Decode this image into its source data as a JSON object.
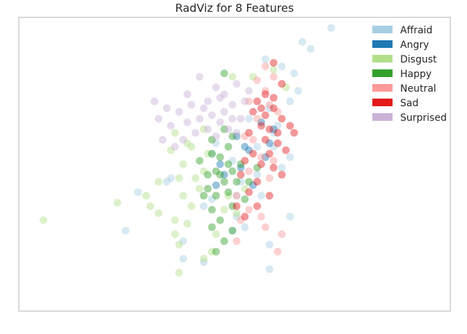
{
  "chart_data": {
    "type": "scatter",
    "title": "RadViz for 8 Features",
    "xlabel": "",
    "ylabel": "",
    "xlim": [
      -0.5,
      0.55
    ],
    "ylim": [
      -0.42,
      0.42
    ],
    "grid": false,
    "legend_position": "top-right",
    "axes_ticks_visible": false,
    "series": [
      {
        "name": "Affraid",
        "color": "#a6cee3",
        "points": [
          [
            0.26,
            0.39
          ],
          [
            0.19,
            0.35
          ],
          [
            0.21,
            0.33
          ],
          [
            0.1,
            0.3
          ],
          [
            0.14,
            0.28
          ],
          [
            0.17,
            0.26
          ],
          [
            0.18,
            0.21
          ],
          [
            0.16,
            0.18
          ],
          [
            0.11,
            0.16
          ],
          [
            0.12,
            0.09
          ],
          [
            0.08,
            0.05
          ],
          [
            0.12,
            0.05
          ],
          [
            0.16,
            0.02
          ],
          [
            0.08,
            -0.03
          ],
          [
            -0.03,
            0.03
          ],
          [
            -0.13,
            -0.04
          ],
          [
            -0.14,
            -0.05
          ],
          [
            -0.21,
            -0.08
          ],
          [
            -0.03,
            -0.1
          ],
          [
            -0.05,
            -0.12
          ],
          [
            0.16,
            -0.15
          ],
          [
            0.03,
            -0.15
          ],
          [
            -0.24,
            -0.19
          ],
          [
            -0.1,
            -0.22
          ],
          [
            0.02,
            -0.19
          ],
          [
            -0.1,
            -0.27
          ],
          [
            0.05,
            -0.18
          ],
          [
            0.11,
            -0.23
          ],
          [
            -0.05,
            -0.28
          ],
          [
            0.11,
            -0.3
          ],
          [
            0.04,
            -0.05
          ],
          [
            0.09,
            -0.09
          ],
          [
            0.02,
            0.01
          ],
          [
            -0.02,
            0.06
          ],
          [
            0.13,
            0.11
          ],
          [
            0.06,
            0.13
          ],
          [
            0.03,
            -0.09
          ],
          [
            0.14,
            -0.01
          ]
        ]
      },
      {
        "name": "Angry",
        "color": "#1f78b4",
        "points": [
          [
            0.06,
            0.04
          ],
          [
            0.1,
            0.02
          ],
          [
            0.04,
            -0.01
          ],
          [
            0.0,
            -0.03
          ],
          [
            -0.02,
            -0.06
          ],
          [
            0.07,
            -0.06
          ],
          [
            0.12,
            0.1
          ],
          [
            0.09,
            0.12
          ],
          [
            0.03,
            0.08
          ],
          [
            -0.01,
            0.0
          ],
          [
            0.05,
            0.05
          ],
          [
            0.11,
            0.06
          ]
        ]
      },
      {
        "name": "Disgust",
        "color": "#b2df8a",
        "points": [
          [
            -0.44,
            -0.16
          ],
          [
            -0.26,
            -0.11
          ],
          [
            -0.19,
            -0.09
          ],
          [
            -0.18,
            -0.12
          ],
          [
            -0.16,
            -0.14
          ],
          [
            -0.12,
            -0.16
          ],
          [
            -0.12,
            -0.2
          ],
          [
            -0.11,
            -0.23
          ],
          [
            -0.08,
            -0.12
          ],
          [
            -0.09,
            -0.17
          ],
          [
            -0.1,
            -0.09
          ],
          [
            -0.06,
            -0.07
          ],
          [
            -0.07,
            -0.04
          ],
          [
            -0.05,
            -0.02
          ],
          [
            -0.04,
            0.03
          ],
          [
            -0.09,
            0.06
          ],
          [
            -0.1,
            0.0
          ],
          [
            -0.11,
            -0.04
          ],
          [
            -0.12,
            0.09
          ],
          [
            -0.05,
            0.1
          ],
          [
            -0.02,
            -0.2
          ],
          [
            -0.03,
            -0.25
          ],
          [
            -0.05,
            -0.27
          ],
          [
            0.0,
            -0.13
          ],
          [
            0.01,
            -0.09
          ],
          [
            0.03,
            -0.14
          ],
          [
            0.05,
            -0.07
          ],
          [
            0.02,
            0.25
          ],
          [
            0.12,
            0.27
          ],
          [
            0.15,
            0.22
          ],
          [
            -0.11,
            -0.31
          ],
          [
            -0.16,
            -0.05
          ],
          [
            -0.13,
            0.04
          ],
          [
            -0.08,
            0.05
          ],
          [
            0.07,
            0.25
          ]
        ]
      },
      {
        "name": "Happy",
        "color": "#33a02c",
        "points": [
          [
            -0.03,
            0.03
          ],
          [
            -0.01,
            0.02
          ],
          [
            0.01,
            0.0
          ],
          [
            -0.02,
            -0.02
          ],
          [
            0.0,
            -0.05
          ],
          [
            -0.04,
            -0.07
          ],
          [
            -0.02,
            -0.09
          ],
          [
            0.01,
            -0.08
          ],
          [
            0.03,
            -0.05
          ],
          [
            -0.03,
            -0.13
          ],
          [
            -0.01,
            -0.16
          ],
          [
            0.02,
            -0.12
          ],
          [
            -0.04,
            -0.03
          ],
          [
            -0.05,
            -0.09
          ],
          [
            0.01,
            0.05
          ],
          [
            -0.03,
            0.07
          ],
          [
            0.0,
            0.1
          ],
          [
            0.04,
            0.0
          ],
          [
            0.02,
            -0.02
          ],
          [
            -0.06,
            0.01
          ],
          [
            0.0,
            -0.22
          ],
          [
            -0.03,
            -0.18
          ],
          [
            0.02,
            -0.19
          ],
          [
            -0.01,
            -0.03
          ],
          [
            0.05,
            -0.1
          ],
          [
            0.06,
            -0.05
          ],
          [
            0.08,
            -0.01
          ],
          [
            0.02,
            0.08
          ],
          [
            0.0,
            0.26
          ],
          [
            -0.02,
            -0.25
          ]
        ]
      },
      {
        "name": "Neutral",
        "color": "#fb9a99",
        "points": [
          [
            0.1,
            0.28
          ],
          [
            0.12,
            0.25
          ],
          [
            0.08,
            0.24
          ],
          [
            0.1,
            0.21
          ],
          [
            0.06,
            0.18
          ],
          [
            0.11,
            0.17
          ],
          [
            0.13,
            0.15
          ],
          [
            0.08,
            0.13
          ],
          [
            0.05,
            0.08
          ],
          [
            0.09,
            0.02
          ],
          [
            0.06,
            -0.02
          ],
          [
            0.11,
            -0.04
          ],
          [
            0.03,
            -0.09
          ],
          [
            0.06,
            -0.13
          ],
          [
            0.09,
            -0.15
          ],
          [
            0.04,
            -0.16
          ],
          [
            0.1,
            -0.18
          ],
          [
            0.14,
            -0.2
          ],
          [
            0.13,
            -0.25
          ],
          [
            0.03,
            -0.22
          ],
          [
            0.07,
            0.07
          ],
          [
            0.12,
            0.01
          ]
        ]
      },
      {
        "name": "Sad",
        "color": "#e31a1c",
        "points": [
          [
            0.12,
            0.29
          ],
          [
            0.14,
            0.23
          ],
          [
            0.1,
            0.2
          ],
          [
            0.08,
            0.18
          ],
          [
            0.12,
            0.16
          ],
          [
            0.07,
            0.15
          ],
          [
            0.14,
            0.13
          ],
          [
            0.09,
            0.11
          ],
          [
            0.11,
            0.1
          ],
          [
            0.06,
            0.09
          ],
          [
            0.1,
            0.07
          ],
          [
            0.13,
            0.06
          ],
          [
            0.17,
            0.09
          ],
          [
            0.15,
            0.04
          ],
          [
            0.11,
            0.03
          ],
          [
            0.07,
            0.03
          ],
          [
            0.09,
            0.0
          ],
          [
            0.12,
            -0.01
          ],
          [
            0.14,
            -0.03
          ],
          [
            0.05,
            0.01
          ],
          [
            0.04,
            -0.03
          ],
          [
            0.08,
            -0.05
          ],
          [
            0.06,
            -0.08
          ],
          [
            0.03,
            -0.12
          ],
          [
            0.05,
            -0.15
          ],
          [
            0.08,
            -0.12
          ],
          [
            0.11,
            -0.09
          ],
          [
            0.12,
            0.19
          ],
          [
            0.09,
            0.16
          ],
          [
            0.16,
            0.11
          ],
          [
            0.1,
            0.14
          ],
          [
            0.13,
            0.09
          ]
        ]
      },
      {
        "name": "Surprised",
        "color": "#cab2d6",
        "points": [
          [
            -0.06,
            0.25
          ],
          [
            -0.02,
            0.22
          ],
          [
            0.0,
            0.2
          ],
          [
            0.03,
            0.23
          ],
          [
            -0.04,
            0.18
          ],
          [
            -0.08,
            0.17
          ],
          [
            -0.11,
            0.15
          ],
          [
            -0.14,
            0.16
          ],
          [
            -0.16,
            0.13
          ],
          [
            -0.13,
            0.11
          ],
          [
            -0.09,
            0.12
          ],
          [
            -0.06,
            0.13
          ],
          [
            -0.03,
            0.14
          ],
          [
            0.0,
            0.15
          ],
          [
            0.02,
            0.17
          ],
          [
            0.05,
            0.18
          ],
          [
            0.04,
            0.13
          ],
          [
            -0.01,
            0.12
          ],
          [
            -0.04,
            0.1
          ],
          [
            -0.07,
            0.09
          ],
          [
            -0.1,
            0.07
          ],
          [
            -0.12,
            0.05
          ],
          [
            -0.15,
            0.07
          ],
          [
            -0.02,
            0.08
          ],
          [
            0.01,
            0.1
          ],
          [
            0.03,
            0.09
          ],
          [
            -0.05,
            0.16
          ],
          [
            -0.09,
            0.2
          ],
          [
            0.06,
            0.21
          ],
          [
            -0.17,
            0.18
          ],
          [
            -0.01,
            0.19
          ],
          [
            0.02,
            0.13
          ]
        ]
      }
    ]
  }
}
